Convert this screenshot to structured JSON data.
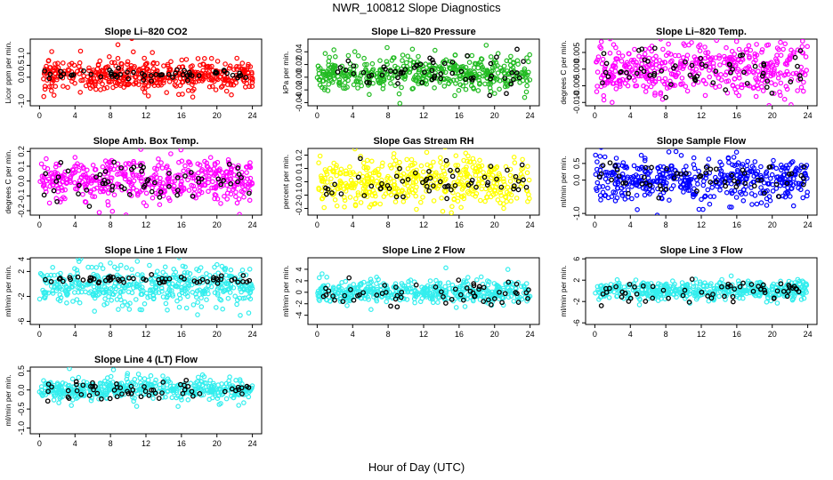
{
  "figure": {
    "title": "NWR_100812  Slope Diagnostics",
    "xlabel": "Hour of Day (UTC)"
  },
  "chart_data": [
    {
      "type": "scatter",
      "title": "Slope Li–820 CO2",
      "ylabel": "Licor ppm per min.",
      "xlim": [
        0,
        24
      ],
      "xticks": [
        "0",
        "4",
        "8",
        "12",
        "16",
        "20",
        "24"
      ],
      "ylim": [
        -1.2,
        1.6
      ],
      "yticks": [
        "-1.0",
        "0.0",
        "0.5",
        "1.0"
      ],
      "ytick_values": [
        -1.0,
        0.0,
        0.5,
        1.0
      ],
      "color": "#ff0000",
      "center": 0.1,
      "spread": 0.32,
      "black_spread": 0.12,
      "n": 460,
      "n_black": 60,
      "seed": 11
    },
    {
      "type": "scatter",
      "title": "Slope Li–820 Pressure",
      "ylabel": "kPa per min.",
      "xlim": [
        0,
        24
      ],
      "xticks": [
        "0",
        "4",
        "8",
        "12",
        "16",
        "20",
        "24"
      ],
      "ylim": [
        -0.045,
        0.06
      ],
      "yticks": [
        "-0.04",
        "-0.02",
        "0.00",
        "0.02",
        "0.04"
      ],
      "ytick_values": [
        -0.04,
        -0.02,
        0.0,
        0.02,
        0.04
      ],
      "color": "#22bb22",
      "center": 0.006,
      "spread": 0.013,
      "black_spread": 0.012,
      "n": 460,
      "n_black": 60,
      "seed": 23
    },
    {
      "type": "scatter",
      "title": "Slope Li–820 Temp.",
      "ylabel": "degrees C per min.",
      "xlim": [
        0,
        24
      ],
      "xticks": [
        "0",
        "4",
        "8",
        "12",
        "16",
        "20",
        "24"
      ],
      "ylim": [
        -0.011,
        0.009
      ],
      "yticks": [
        "-0.010",
        "-0.005",
        "0.000",
        "0.005"
      ],
      "ytick_values": [
        -0.01,
        -0.005,
        0.0,
        0.005
      ],
      "color": "#ff00ff",
      "center": 0.0,
      "spread": 0.004,
      "black_spread": 0.003,
      "n": 460,
      "n_black": 60,
      "seed": 37
    },
    {
      "type": "scatter",
      "title": "Slope Amb. Box Temp.",
      "ylabel": "degrees C per min.",
      "xlim": [
        0,
        24
      ],
      "xticks": [
        "0",
        "4",
        "8",
        "12",
        "16",
        "20",
        "24"
      ],
      "ylim": [
        -0.23,
        0.22
      ],
      "yticks": [
        "-0.2",
        "-0.1",
        "0.0",
        "0.1",
        "0.2"
      ],
      "ytick_values": [
        -0.2,
        -0.1,
        0.0,
        0.1,
        0.2
      ],
      "color": "#ff00ff",
      "center": 0.0,
      "spread": 0.07,
      "black_spread": 0.06,
      "n": 460,
      "n_black": 60,
      "seed": 41
    },
    {
      "type": "scatter",
      "title": "Slope Gas Stream RH",
      "ylabel": "percent per min.",
      "xlim": [
        0,
        24
      ],
      "xticks": [
        "0",
        "4",
        "8",
        "12",
        "16",
        "20",
        "24"
      ],
      "ylim": [
        -0.25,
        0.25
      ],
      "yticks": [
        "-0.2",
        "-0.1",
        "0.0",
        "0.1",
        "0.2"
      ],
      "ytick_values": [
        -0.2,
        -0.1,
        0.0,
        0.1,
        0.2
      ],
      "color": "#ffff00",
      "center": 0.0,
      "spread": 0.09,
      "black_spread": 0.07,
      "n": 460,
      "n_black": 60,
      "seed": 53
    },
    {
      "type": "scatter",
      "title": "Slope Sample Flow",
      "ylabel": "ml/min per min.",
      "xlim": [
        0,
        24
      ],
      "xticks": [
        "0",
        "4",
        "8",
        "12",
        "16",
        "20",
        "24"
      ],
      "ylim": [
        -1.05,
        0.95
      ],
      "yticks": [
        "-1.0",
        "0.0",
        "0.5"
      ],
      "ytick_values": [
        -1.0,
        0.0,
        0.5
      ],
      "color": "#0000ff",
      "center": 0.0,
      "spread": 0.33,
      "black_spread": 0.25,
      "n": 460,
      "n_black": 60,
      "seed": 61
    },
    {
      "type": "scatter",
      "title": "Slope Line 1 Flow",
      "ylabel": "ml/min per min.",
      "xlim": [
        0,
        24
      ],
      "xticks": [
        "0",
        "4",
        "8",
        "12",
        "16",
        "20",
        "24"
      ],
      "ylim": [
        -6.5,
        4.2
      ],
      "yticks": [
        "-6",
        "-2",
        "2",
        "4"
      ],
      "ytick_values": [
        -6,
        -2,
        2,
        4
      ],
      "color": "#33eeee",
      "center": -0.3,
      "spread": 1.5,
      "black_spread": 0.3,
      "black_center": 0.7,
      "n": 460,
      "n_black": 60,
      "seed": 71
    },
    {
      "type": "scatter",
      "title": "Slope Line 2 Flow",
      "ylabel": "ml/min per min.",
      "xlim": [
        0,
        24
      ],
      "xticks": [
        "0",
        "4",
        "8",
        "12",
        "16",
        "20",
        "24"
      ],
      "ylim": [
        -5.6,
        6.0
      ],
      "yticks": [
        "-4",
        "-2",
        "0",
        "2",
        "4"
      ],
      "ytick_values": [
        -4,
        -2,
        0,
        2,
        4
      ],
      "color": "#33eeee",
      "center": 0.0,
      "spread": 0.9,
      "black_spread": 1.0,
      "n": 460,
      "n_black": 60,
      "seed": 83
    },
    {
      "type": "scatter",
      "title": "Slope Line 3 Flow",
      "ylabel": "ml/min per min.",
      "xlim": [
        0,
        24
      ],
      "xticks": [
        "0",
        "4",
        "8",
        "12",
        "16",
        "20",
        "24"
      ],
      "ylim": [
        -6.3,
        6.2
      ],
      "yticks": [
        "-6",
        "-2",
        "2",
        "6"
      ],
      "ytick_values": [
        -6,
        -2,
        2,
        6
      ],
      "color": "#33eeee",
      "center": 0.0,
      "spread": 0.9,
      "black_spread": 1.0,
      "n": 460,
      "n_black": 60,
      "seed": 97
    },
    {
      "type": "scatter",
      "title": "Slope Line 4 (LT) Flow",
      "ylabel": "ml/min per min.",
      "xlim": [
        0,
        24
      ],
      "xticks": [
        "0",
        "4",
        "8",
        "12",
        "16",
        "20",
        "24"
      ],
      "ylim": [
        -1.15,
        0.6
      ],
      "yticks": [
        "-1.0",
        "-0.5",
        "0.0",
        "0.5"
      ],
      "ytick_values": [
        -1.0,
        -0.5,
        0.0,
        0.5
      ],
      "color": "#33eeee",
      "center": 0.0,
      "spread": 0.13,
      "black_spread": 0.12,
      "n": 460,
      "n_black": 60,
      "seed": 109
    }
  ]
}
